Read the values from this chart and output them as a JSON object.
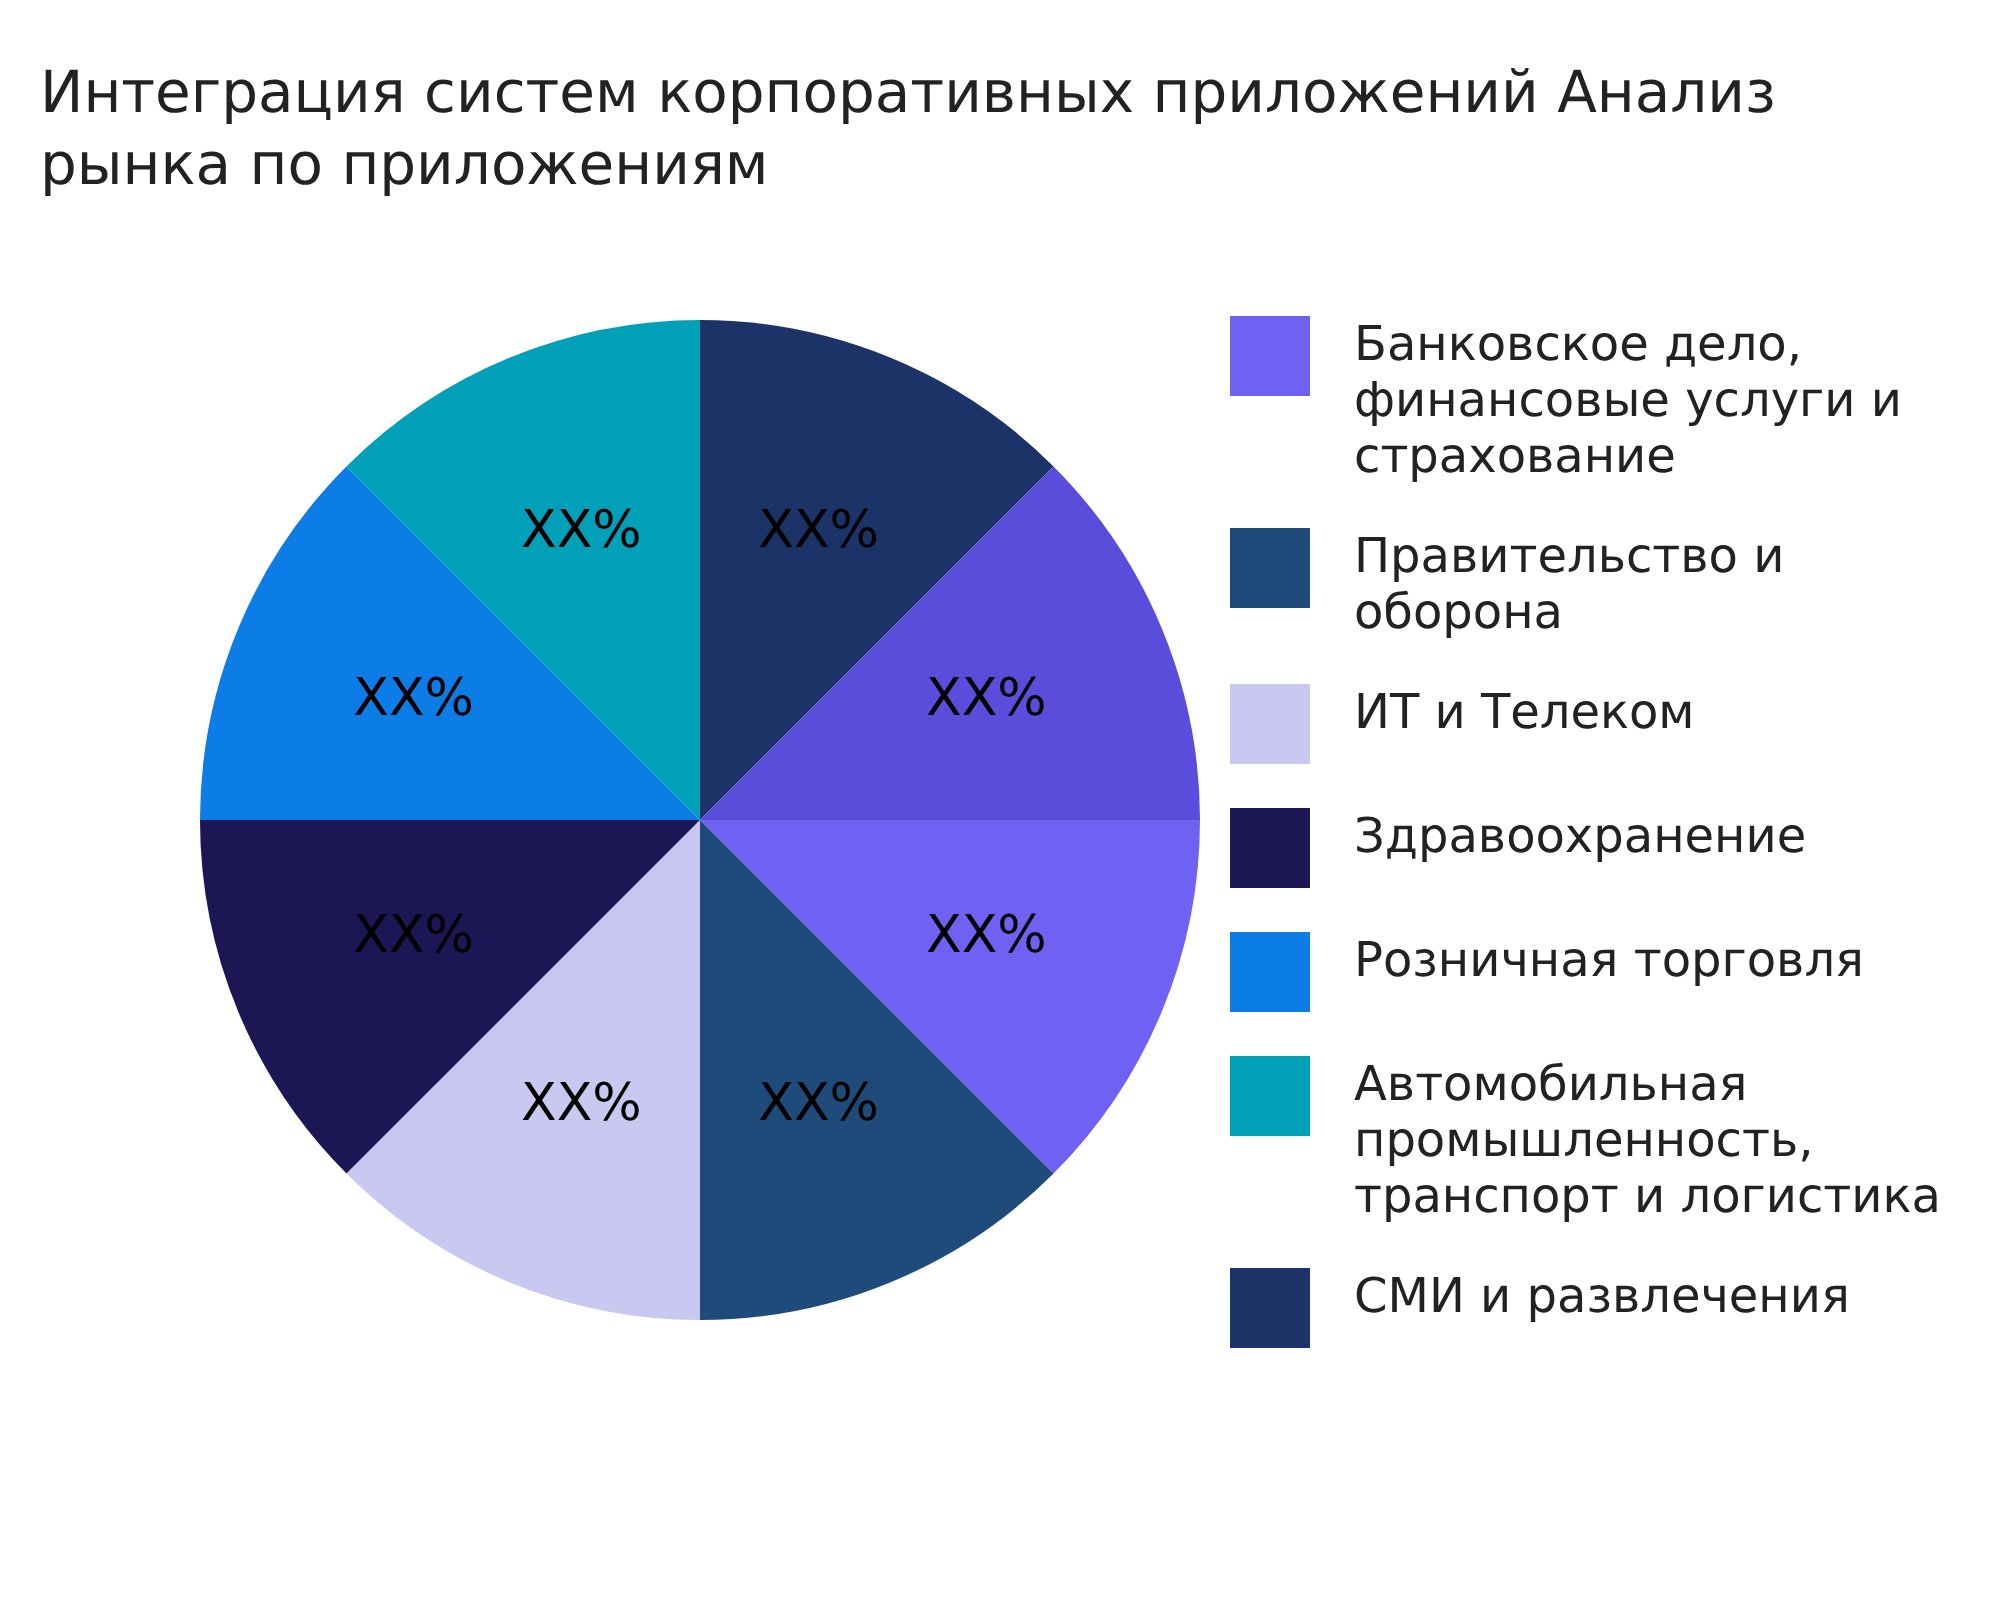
{
  "chart_data": {
    "type": "pie",
    "title": "Интеграция систем корпоративных приложений Анализ рынка по приложениям",
    "categories": [
      "Банковское дело, финансовые услуги и страхование",
      "Правительство и оборона",
      "ИТ и Телеком",
      "Здравоохранение",
      "Розничная торговля",
      "Автомобильная промышленность, транспорт и логистика",
      "СМИ и развлечения",
      null
    ],
    "values": [
      12.5,
      12.5,
      12.5,
      12.5,
      12.5,
      12.5,
      12.5,
      12.5
    ],
    "colors": [
      "#6f61f2",
      "#1f4b7a",
      "#c8c8f0",
      "#1c1654",
      "#0c7ce6",
      "#00a0b8",
      "#1b3366",
      "#5b4ddb"
    ],
    "value_labels": [
      "XX%",
      "XX%",
      "XX%",
      "XX%",
      "XX%",
      "XX%",
      "XX%",
      "XX%"
    ],
    "legend": "right"
  }
}
